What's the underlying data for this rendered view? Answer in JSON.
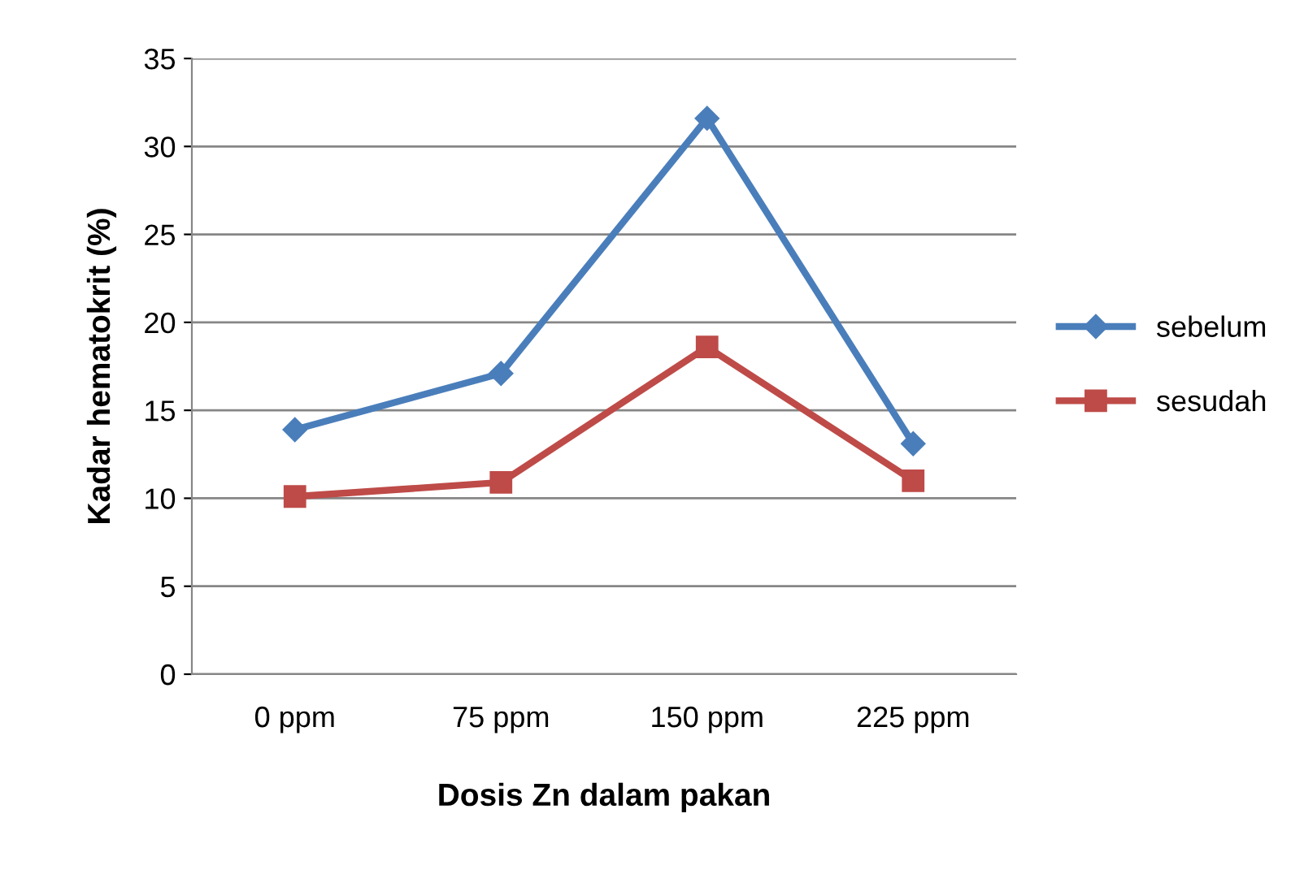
{
  "chart_data": {
    "type": "line",
    "xlabel": "Dosis Zn dalam pakan",
    "ylabel": "Kadar hematokrit (%)",
    "categories": [
      "0 ppm",
      "75 ppm",
      "150 ppm",
      "225 ppm"
    ],
    "series": [
      {
        "name": "sebelum",
        "color": "#4a7ebb",
        "marker": "diamond",
        "values": [
          13.9,
          17.1,
          31.6,
          13.1
        ]
      },
      {
        "name": "sesudah",
        "color": "#be4b48",
        "marker": "square",
        "values": [
          10.1,
          10.9,
          18.6,
          11.0
        ]
      }
    ],
    "ylim": [
      0,
      35
    ],
    "yticks": [
      0,
      5,
      10,
      15,
      20,
      25,
      30,
      35
    ],
    "grid": "y",
    "legend": "right",
    "line_style": "solid"
  }
}
